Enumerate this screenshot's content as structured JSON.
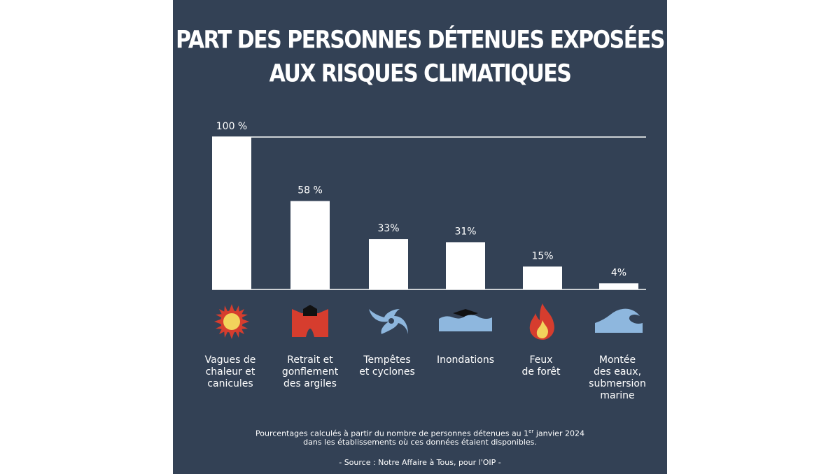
{
  "chart_data": {
    "type": "bar",
    "title": [
      "PART DES PERSONNES DÉTENUES EXPOSÉES",
      "AUX RISQUES CLIMATIQUES"
    ],
    "categories": [
      "Vagues de\nchaleur et\ncanicules",
      "Retrait et\ngonflement\ndes argiles",
      "Tempêtes\net cyclones",
      "Inondations",
      "Feux\nde forêt",
      "Montée\ndes eaux,\nsubmersion\nmarine"
    ],
    "values": [
      100,
      58,
      33,
      31,
      15,
      4
    ],
    "value_labels": [
      "100 %",
      "58 %",
      "33%",
      "31%",
      "15%",
      "4%"
    ],
    "ylim": [
      0,
      100
    ],
    "grid": "single line at 100",
    "legend": "none"
  },
  "icons": [
    "sun-icon",
    "cracked-ground-icon",
    "cyclone-icon",
    "flood-icon",
    "fire-icon",
    "wave-icon"
  ],
  "colors": {
    "background": "#334155",
    "bar": "#ffffff",
    "icon_red": "#d63d2e",
    "icon_yellow": "#f2d35c",
    "icon_blue": "#8eb7de"
  },
  "footnote": {
    "line1_before": "Pourcentages calculés à partir du nombre de personnes détenues au 1",
    "line1_sup": "er",
    "line1_after": " janvier 2024",
    "line2": "dans les établissements où ces données étaient disponibles.",
    "source": "- Source : Notre Affaire à Tous, pour l'OIP -"
  }
}
